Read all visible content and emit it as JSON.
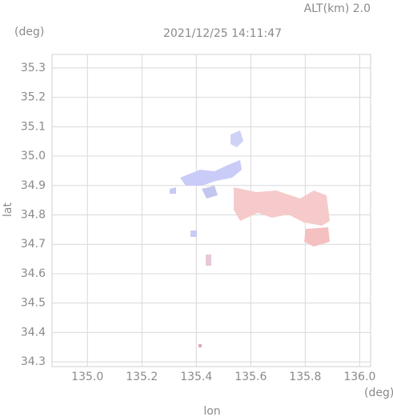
{
  "chart_data": {
    "type": "map",
    "title": "2021/12/25 14:11:47",
    "annotation": "ALT(km) 2.0",
    "xlabel": "lon",
    "ylabel": "lat",
    "xunit": "(deg)",
    "yunit": "(deg)",
    "xlim": [
      134.87,
      136.04
    ],
    "ylim": [
      34.284,
      35.346
    ],
    "xticks": [
      {
        "value": 135,
        "label": "135.0"
      },
      135.2,
      135.4,
      135.6,
      135.8,
      {
        "value": 136,
        "label": "136.0"
      }
    ],
    "yticks": [
      35.3,
      35.2,
      35.1,
      {
        "value": 35,
        "label": "35.0"
      },
      34.9,
      34.8,
      34.7,
      34.6,
      34.5,
      34.4,
      34.3
    ],
    "grid": true
  }
}
